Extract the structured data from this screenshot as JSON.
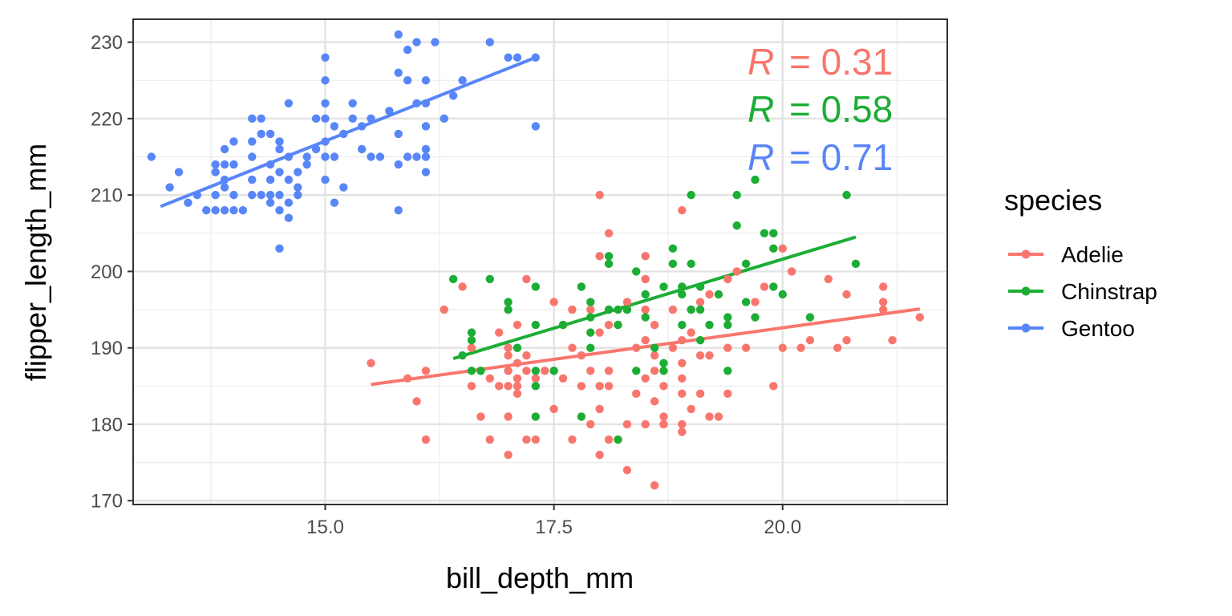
{
  "chart_data": {
    "type": "scatter",
    "xlabel": "bill_depth_mm",
    "ylabel": "flipper_length_mm",
    "xlim": [
      12.9,
      21.8
    ],
    "ylim": [
      169.5,
      233.0
    ],
    "xticks": [
      15.0,
      17.5,
      20.0
    ],
    "xtick_labels": [
      "15.0",
      "17.5",
      "20.0"
    ],
    "yticks": [
      170,
      180,
      190,
      200,
      210,
      220,
      230
    ],
    "ytick_labels": [
      "170",
      "180",
      "190",
      "200",
      "210",
      "220",
      "230"
    ],
    "grid": true,
    "legend": {
      "title": "species",
      "position": "right"
    },
    "annotations": [
      {
        "label": "R",
        "text": "= 0.31",
        "series": "Adelie"
      },
      {
        "label": "R",
        "text": "= 0.58",
        "series": "Chinstrap"
      },
      {
        "label": "R",
        "text": "= 0.71",
        "series": "Gentoo"
      }
    ],
    "series": [
      {
        "name": "Adelie",
        "color": "#F8766D",
        "fit": {
          "x": [
            15.5,
            21.5
          ],
          "y": [
            185.2,
            195.1
          ]
        },
        "points": [
          [
            15.5,
            188
          ],
          [
            16.0,
            183
          ],
          [
            16.1,
            178
          ],
          [
            16.1,
            187
          ],
          [
            15.9,
            186
          ],
          [
            16.3,
            195
          ],
          [
            16.5,
            198
          ],
          [
            16.6,
            185
          ],
          [
            16.6,
            190
          ],
          [
            16.7,
            181
          ],
          [
            16.7,
            187
          ],
          [
            16.8,
            178
          ],
          [
            16.8,
            186
          ],
          [
            16.9,
            192
          ],
          [
            16.9,
            185
          ],
          [
            17.0,
            176
          ],
          [
            17.0,
            181
          ],
          [
            17.0,
            185
          ],
          [
            17.0,
            187
          ],
          [
            17.0,
            189
          ],
          [
            17.0,
            190
          ],
          [
            17.1,
            184
          ],
          [
            17.1,
            185
          ],
          [
            17.1,
            186
          ],
          [
            17.1,
            188
          ],
          [
            17.1,
            190
          ],
          [
            17.1,
            193
          ],
          [
            17.2,
            178
          ],
          [
            17.2,
            187
          ],
          [
            17.2,
            189
          ],
          [
            17.2,
            199
          ],
          [
            17.3,
            178
          ],
          [
            17.3,
            186
          ],
          [
            17.4,
            187
          ],
          [
            17.5,
            182
          ],
          [
            17.5,
            187
          ],
          [
            17.5,
            196
          ],
          [
            17.6,
            186
          ],
          [
            17.6,
            193
          ],
          [
            17.7,
            178
          ],
          [
            17.7,
            190
          ],
          [
            17.7,
            195
          ],
          [
            17.8,
            185
          ],
          [
            17.8,
            189
          ],
          [
            17.9,
            180
          ],
          [
            17.9,
            187
          ],
          [
            17.9,
            195
          ],
          [
            18.0,
            176
          ],
          [
            18.0,
            182
          ],
          [
            18.0,
            185
          ],
          [
            18.0,
            192
          ],
          [
            18.0,
            202
          ],
          [
            18.0,
            210
          ],
          [
            18.1,
            178
          ],
          [
            18.1,
            185
          ],
          [
            18.1,
            187
          ],
          [
            18.1,
            193
          ],
          [
            18.1,
            195
          ],
          [
            18.1,
            205
          ],
          [
            18.2,
            178
          ],
          [
            18.2,
            193
          ],
          [
            18.3,
            174
          ],
          [
            18.3,
            180
          ],
          [
            18.3,
            196
          ],
          [
            18.4,
            184
          ],
          [
            18.4,
            190
          ],
          [
            18.5,
            180
          ],
          [
            18.5,
            186
          ],
          [
            18.5,
            191
          ],
          [
            18.5,
            195
          ],
          [
            18.5,
            199
          ],
          [
            18.5,
            202
          ],
          [
            18.6,
            172
          ],
          [
            18.6,
            183
          ],
          [
            18.6,
            187
          ],
          [
            18.6,
            189
          ],
          [
            18.6,
            193
          ],
          [
            18.7,
            180
          ],
          [
            18.7,
            181
          ],
          [
            18.7,
            185
          ],
          [
            18.8,
            190
          ],
          [
            18.8,
            195
          ],
          [
            18.9,
            179
          ],
          [
            18.9,
            180
          ],
          [
            18.9,
            184
          ],
          [
            18.9,
            186
          ],
          [
            18.9,
            188
          ],
          [
            18.9,
            191
          ],
          [
            18.9,
            208
          ],
          [
            19.0,
            182
          ],
          [
            19.0,
            192
          ],
          [
            19.0,
            195
          ],
          [
            19.1,
            184
          ],
          [
            19.1,
            189
          ],
          [
            19.1,
            196
          ],
          [
            19.2,
            181
          ],
          [
            19.2,
            189
          ],
          [
            19.2,
            197
          ],
          [
            19.3,
            181
          ],
          [
            19.4,
            184
          ],
          [
            19.4,
            190
          ],
          [
            19.4,
            199
          ],
          [
            19.5,
            200
          ],
          [
            19.6,
            190
          ],
          [
            19.7,
            196
          ],
          [
            19.8,
            198
          ],
          [
            19.9,
            185
          ],
          [
            20.0,
            190
          ],
          [
            20.0,
            203
          ],
          [
            20.1,
            200
          ],
          [
            20.2,
            190
          ],
          [
            20.3,
            191
          ],
          [
            20.5,
            199
          ],
          [
            20.6,
            190
          ],
          [
            20.7,
            191
          ],
          [
            20.7,
            197
          ],
          [
            21.1,
            195
          ],
          [
            21.1,
            196
          ],
          [
            21.1,
            198
          ],
          [
            21.2,
            191
          ],
          [
            21.5,
            194
          ]
        ]
      },
      {
        "name": "Chinstrap",
        "color": "#1CAD35",
        "fit": {
          "x": [
            16.4,
            20.8
          ],
          "y": [
            188.6,
            204.5
          ]
        },
        "points": [
          [
            16.4,
            199
          ],
          [
            16.5,
            189
          ],
          [
            16.6,
            187
          ],
          [
            16.6,
            191
          ],
          [
            16.6,
            192
          ],
          [
            16.8,
            199
          ],
          [
            16.7,
            187
          ],
          [
            17.0,
            195
          ],
          [
            17.0,
            196
          ],
          [
            17.1,
            190
          ],
          [
            17.3,
            181
          ],
          [
            17.3,
            185
          ],
          [
            17.3,
            187
          ],
          [
            17.3,
            193
          ],
          [
            17.3,
            198
          ],
          [
            17.5,
            187
          ],
          [
            17.6,
            193
          ],
          [
            17.8,
            181
          ],
          [
            17.8,
            198
          ],
          [
            17.9,
            190
          ],
          [
            17.9,
            192
          ],
          [
            17.9,
            194
          ],
          [
            17.9,
            196
          ],
          [
            18.1,
            195
          ],
          [
            18.1,
            201
          ],
          [
            18.1,
            202
          ],
          [
            18.2,
            178
          ],
          [
            18.2,
            193
          ],
          [
            18.2,
            195
          ],
          [
            18.3,
            195
          ],
          [
            18.4,
            187
          ],
          [
            18.4,
            200
          ],
          [
            18.5,
            194
          ],
          [
            18.5,
            197
          ],
          [
            18.6,
            190
          ],
          [
            18.7,
            187
          ],
          [
            18.7,
            188
          ],
          [
            18.7,
            198
          ],
          [
            18.8,
            201
          ],
          [
            18.8,
            203
          ],
          [
            18.9,
            193
          ],
          [
            18.9,
            197
          ],
          [
            18.9,
            198
          ],
          [
            19.0,
            195
          ],
          [
            19.0,
            201
          ],
          [
            19.0,
            210
          ],
          [
            19.1,
            191
          ],
          [
            19.1,
            195
          ],
          [
            19.1,
            198
          ],
          [
            19.3,
            197
          ],
          [
            19.4,
            187
          ],
          [
            19.4,
            193
          ],
          [
            19.4,
            194
          ],
          [
            19.5,
            210
          ],
          [
            19.6,
            196
          ],
          [
            19.6,
            201
          ],
          [
            19.7,
            194
          ],
          [
            19.7,
            212
          ],
          [
            19.8,
            205
          ],
          [
            19.9,
            198
          ],
          [
            19.9,
            203
          ],
          [
            19.9,
            205
          ],
          [
            20.0,
            197
          ],
          [
            20.3,
            194
          ],
          [
            20.7,
            210
          ],
          [
            20.8,
            201
          ],
          [
            19.5,
            206
          ],
          [
            19.2,
            193
          ],
          [
            18.3,
            195
          ]
        ]
      },
      {
        "name": "Gentoo",
        "color": "#5886F8",
        "fit": {
          "x": [
            13.2,
            17.3
          ],
          "y": [
            208.5,
            228.0
          ]
        },
        "points": [
          [
            13.1,
            215
          ],
          [
            13.3,
            211
          ],
          [
            13.4,
            213
          ],
          [
            13.5,
            209
          ],
          [
            13.6,
            210
          ],
          [
            13.7,
            208
          ],
          [
            13.8,
            208
          ],
          [
            13.8,
            210
          ],
          [
            13.8,
            213
          ],
          [
            13.8,
            214
          ],
          [
            13.9,
            208
          ],
          [
            13.9,
            211
          ],
          [
            13.9,
            212
          ],
          [
            13.9,
            214
          ],
          [
            13.9,
            216
          ],
          [
            14.0,
            208
          ],
          [
            14.0,
            210
          ],
          [
            14.0,
            214
          ],
          [
            14.0,
            217
          ],
          [
            14.1,
            208
          ],
          [
            14.2,
            210
          ],
          [
            14.2,
            212
          ],
          [
            14.2,
            215
          ],
          [
            14.2,
            217
          ],
          [
            14.2,
            220
          ],
          [
            14.3,
            210
          ],
          [
            14.3,
            218
          ],
          [
            14.3,
            220
          ],
          [
            14.4,
            209
          ],
          [
            14.4,
            210
          ],
          [
            14.4,
            212
          ],
          [
            14.4,
            214
          ],
          [
            14.4,
            218
          ],
          [
            14.5,
            203
          ],
          [
            14.5,
            208
          ],
          [
            14.5,
            210
          ],
          [
            14.5,
            213
          ],
          [
            14.5,
            216
          ],
          [
            14.5,
            217
          ],
          [
            14.6,
            207
          ],
          [
            14.6,
            209
          ],
          [
            14.6,
            212
          ],
          [
            14.6,
            215
          ],
          [
            14.6,
            222
          ],
          [
            14.7,
            210
          ],
          [
            14.7,
            211
          ],
          [
            14.7,
            213
          ],
          [
            14.8,
            214
          ],
          [
            14.9,
            216
          ],
          [
            14.9,
            220
          ],
          [
            15.0,
            212
          ],
          [
            15.0,
            215
          ],
          [
            15.0,
            217
          ],
          [
            15.0,
            220
          ],
          [
            15.0,
            222
          ],
          [
            15.0,
            225
          ],
          [
            15.0,
            228
          ],
          [
            15.1,
            209
          ],
          [
            15.1,
            215
          ],
          [
            15.1,
            219
          ],
          [
            15.2,
            211
          ],
          [
            15.2,
            218
          ],
          [
            15.3,
            220
          ],
          [
            15.3,
            222
          ],
          [
            15.4,
            216
          ],
          [
            15.4,
            219
          ],
          [
            15.5,
            215
          ],
          [
            15.6,
            215
          ],
          [
            15.7,
            221
          ],
          [
            15.8,
            208
          ],
          [
            15.8,
            214
          ],
          [
            15.8,
            218
          ],
          [
            15.8,
            226
          ],
          [
            15.8,
            231
          ],
          [
            15.9,
            215
          ],
          [
            15.9,
            229
          ],
          [
            16.0,
            215
          ],
          [
            16.0,
            230
          ],
          [
            16.1,
            213
          ],
          [
            16.1,
            215
          ],
          [
            16.1,
            216
          ],
          [
            16.1,
            219
          ],
          [
            16.1,
            222
          ],
          [
            16.1,
            225
          ],
          [
            16.2,
            230
          ],
          [
            16.3,
            220
          ],
          [
            16.4,
            223
          ],
          [
            16.5,
            225
          ],
          [
            16.8,
            230
          ],
          [
            17.0,
            228
          ],
          [
            17.1,
            228
          ],
          [
            17.3,
            219
          ],
          [
            17.3,
            228
          ],
          [
            15.9,
            225
          ],
          [
            15.5,
            220
          ],
          [
            14.8,
            215
          ],
          [
            16.0,
            222
          ]
        ]
      }
    ]
  }
}
